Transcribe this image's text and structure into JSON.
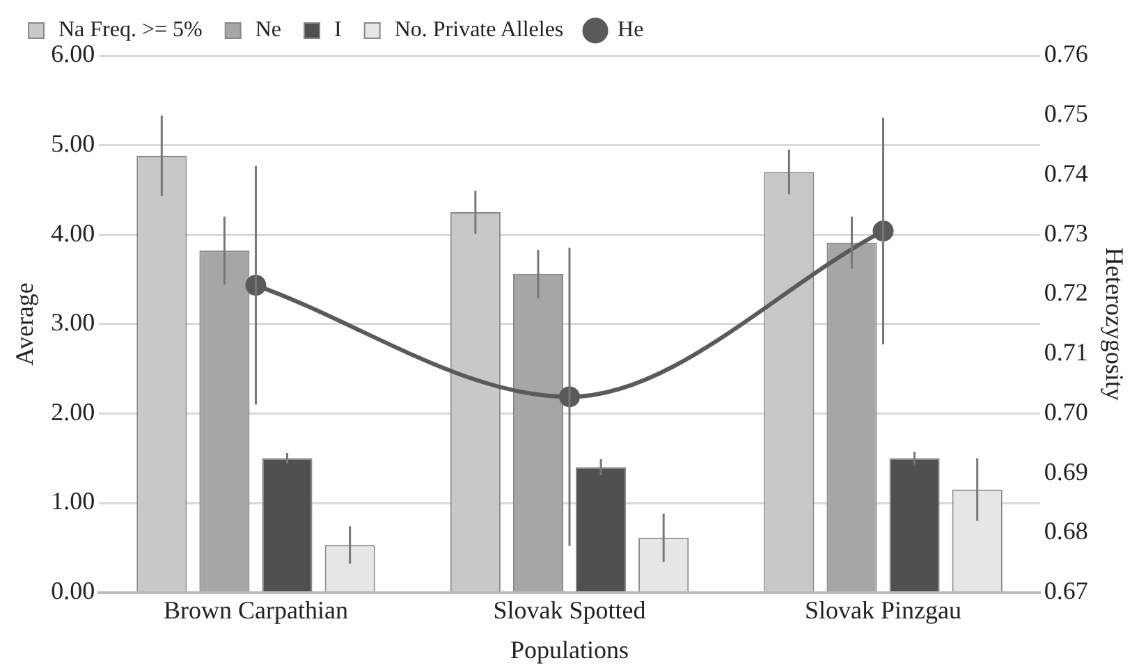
{
  "chart_data": {
    "type": "bar",
    "xlabel": "Populations",
    "ylabel": "Average",
    "y2label": "Heterozygosity",
    "categories": [
      "Brown Carpathian",
      "Slovak Spotted",
      "Slovak Pinzgau"
    ],
    "series": [
      {
        "name": "Na Freq. >= 5%",
        "color": "#c8c8c8",
        "values": [
          4.88,
          4.25,
          4.7
        ],
        "errors": [
          0.45,
          0.24,
          0.25
        ]
      },
      {
        "name": "Ne",
        "color": "#a6a6a6",
        "values": [
          3.82,
          3.56,
          3.91
        ],
        "errors": [
          0.38,
          0.27,
          0.29
        ]
      },
      {
        "name": "I",
        "color": "#505050",
        "values": [
          1.5,
          1.4,
          1.5
        ],
        "errors": [
          0.06,
          0.09,
          0.07
        ]
      },
      {
        "name": "No. Private Alleles",
        "color": "#e6e6e6",
        "values": [
          0.53,
          0.61,
          1.15
        ],
        "errors": [
          0.21,
          0.27,
          0.35
        ]
      },
      {
        "name": "He",
        "type": "line",
        "axis": "y2",
        "color": "#5a5a5a",
        "values": [
          0.7215,
          0.7028,
          0.7306
        ],
        "errors": [
          0.02,
          0.025,
          0.019
        ],
        "marker": "circle"
      }
    ],
    "ylim": [
      0,
      6
    ],
    "yticks": [
      {
        "value": 0,
        "label": "0.00"
      },
      {
        "value": 1,
        "label": "1.00"
      },
      {
        "value": 2,
        "label": "2.00"
      },
      {
        "value": 3,
        "label": "3.00"
      },
      {
        "value": 4,
        "label": "4.00"
      },
      {
        "value": 5,
        "label": "5.00"
      },
      {
        "value": 6,
        "label": "6.00"
      }
    ],
    "y2lim": [
      0.67,
      0.76
    ],
    "y2ticks": [
      0.67,
      0.68,
      0.69,
      {
        "value": 0.7,
        "label": "0.70"
      },
      0.71,
      0.72,
      0.73,
      0.74,
      0.75,
      0.76
    ],
    "grid": "y",
    "legend": "top"
  }
}
